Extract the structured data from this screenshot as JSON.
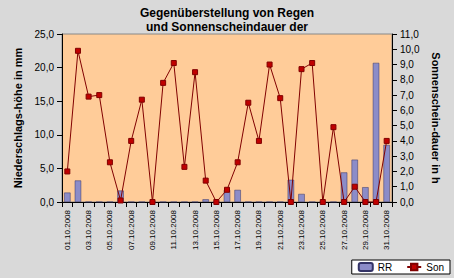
{
  "chart_data": {
    "type": "bar",
    "title": "Gegenüberstellung von Regen\nund Sonnenscheindauer der",
    "y_label": "Niederschlags-höhe in mm",
    "y2_label": "Sonnenschein-dauer in h",
    "categories": [
      "01.10.2008",
      null,
      "03.10.2008",
      null,
      "05.10.2008",
      null,
      "07.10.2008",
      null,
      "09.10.2008",
      null,
      "11.10.2008",
      null,
      "13.10.2008",
      null,
      "15.10.2008",
      null,
      "17.10.2008",
      null,
      "19.10.2008",
      null,
      "21.10.2008",
      null,
      "23.10.2008",
      null,
      "25.10.2008",
      null,
      "27.10.2008",
      null,
      "29.10.2008",
      null,
      "31.10.2008"
    ],
    "series": [
      {
        "name": "RR",
        "type": "bar",
        "color": "#8c8cc8",
        "values": [
          1.4,
          3.2,
          0,
          0,
          0,
          1.7,
          0,
          0,
          0,
          0,
          0,
          0,
          0,
          0.4,
          0,
          1.8,
          1.8,
          0,
          0,
          0,
          0,
          3.3,
          1.2,
          0,
          0,
          0,
          4.4,
          6.3,
          2.2,
          20.7,
          8.5
        ]
      },
      {
        "name": "Son",
        "type": "line",
        "axis": "y2",
        "color": "#800000",
        "marker": "square",
        "values": [
          2.0,
          9.9,
          6.9,
          7.0,
          2.6,
          0.1,
          4.0,
          6.7,
          0.0,
          7.8,
          9.1,
          2.3,
          8.5,
          1.4,
          0.0,
          0.8,
          2.6,
          6.5,
          4.0,
          9.0,
          6.8,
          0.0,
          8.7,
          9.1,
          0.0,
          4.9,
          0.0,
          1.0,
          0.0,
          0.0,
          4.0
        ]
      }
    ],
    "ylim": [
      0,
      25
    ],
    "yticks": [
      {
        "value": 0,
        "label": "0,0"
      },
      {
        "value": 5,
        "label": "5,0"
      },
      {
        "value": 10,
        "label": "10,0"
      },
      {
        "value": 15,
        "label": "15,0"
      },
      {
        "value": 20,
        "label": "20,0"
      },
      {
        "value": 25,
        "label": "25,0"
      }
    ],
    "y2lim": [
      0,
      11
    ],
    "y2ticks": [
      {
        "value": 0,
        "label": "0,0"
      },
      {
        "value": 1,
        "label": "1,0"
      },
      {
        "value": 2,
        "label": "2,0"
      },
      {
        "value": 3,
        "label": "3,0"
      },
      {
        "value": 4,
        "label": "4,0"
      },
      {
        "value": 5,
        "label": "5,0"
      },
      {
        "value": 6,
        "label": "6,0"
      },
      {
        "value": 7,
        "label": "7,0"
      },
      {
        "value": 8,
        "label": "8,0"
      },
      {
        "value": 9,
        "label": "9,0"
      },
      {
        "value": 10,
        "label": "10,0"
      },
      {
        "value": 11,
        "label": "11,0"
      }
    ],
    "grid": false,
    "legend": "bottom-right"
  }
}
